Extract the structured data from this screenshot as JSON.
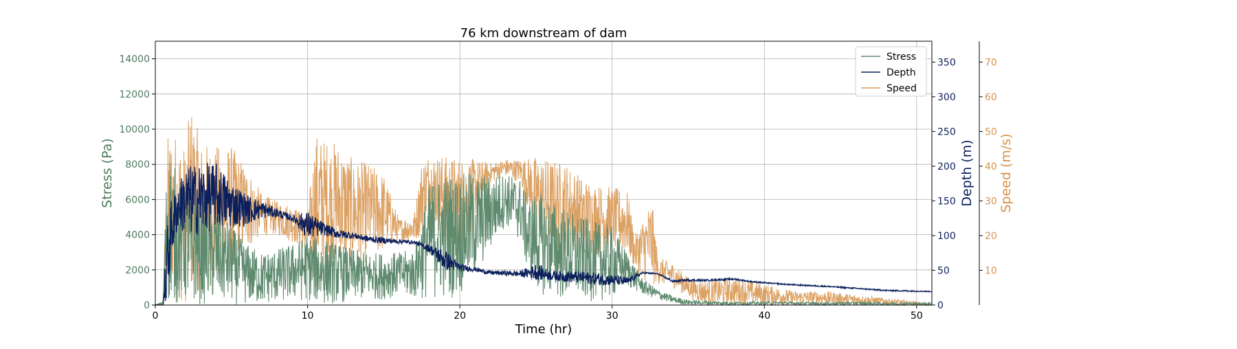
{
  "chart_data": {
    "type": "line",
    "title": "76 km downstream of dam",
    "xlabel": "Time (hr)",
    "xlim": [
      0,
      51
    ],
    "xticks": [
      0,
      10,
      20,
      30,
      40,
      50
    ],
    "grid": true,
    "legend_position": "top-right",
    "axes": {
      "stress": {
        "label": "Stress (Pa)",
        "ylim": [
          0,
          15000
        ],
        "ticks": [
          0,
          2000,
          4000,
          6000,
          8000,
          10000,
          12000,
          14000
        ],
        "side": "left",
        "color": "#4e7a5e"
      },
      "depth": {
        "label": "Depth (m)",
        "ylim": [
          0,
          380
        ],
        "ticks": [
          0,
          50,
          100,
          150,
          200,
          250,
          300,
          350
        ],
        "side": "right",
        "color": "#0b1f5c"
      },
      "speed": {
        "label": "Speed (m/s)",
        "ylim": [
          0,
          76
        ],
        "ticks": [
          10,
          20,
          30,
          40,
          50,
          60,
          70
        ],
        "side": "right-outer",
        "color": "#d8914a"
      }
    },
    "series": [
      {
        "name": "Stress",
        "axis": "stress",
        "color": "#5e8a6e",
        "x": [
          0,
          0.5,
          0.8,
          1.2,
          2,
          3,
          4,
          5,
          6,
          7,
          8,
          9,
          10,
          11,
          12,
          13,
          14,
          15,
          16,
          17,
          18,
          19,
          20,
          21,
          22,
          23,
          24,
          24.5,
          25,
          26,
          27,
          28,
          29,
          30,
          31,
          32,
          33,
          34,
          35,
          36,
          38,
          40,
          42,
          44,
          46,
          48,
          50,
          51
        ],
        "min": [
          0,
          0,
          0,
          0,
          0,
          0,
          0,
          0,
          0,
          0,
          100,
          200,
          200,
          0,
          100,
          200,
          300,
          300,
          500,
          300,
          300,
          300,
          500,
          1500,
          3000,
          4500,
          3500,
          1500,
          800,
          300,
          200,
          200,
          200,
          300,
          1000,
          600,
          300,
          100,
          0,
          0,
          0,
          0,
          0,
          0,
          0,
          0,
          0,
          0
        ],
        "max": [
          0,
          200,
          9500,
          8000,
          6500,
          6000,
          5500,
          4500,
          3500,
          3000,
          3200,
          3500,
          4000,
          3800,
          3500,
          3200,
          3000,
          3000,
          3000,
          3200,
          7000,
          7500,
          7500,
          7500,
          7400,
          7500,
          7200,
          6000,
          6500,
          6000,
          5500,
          5000,
          4700,
          4500,
          3000,
          1500,
          900,
          500,
          300,
          250,
          200,
          200,
          200,
          150,
          200,
          150,
          150,
          150
        ]
      },
      {
        "name": "Depth",
        "axis": "depth",
        "color": "#0b1f5c",
        "x": [
          0,
          0.5,
          0.8,
          1,
          1.5,
          2,
          3,
          4,
          5,
          6,
          7,
          8,
          9,
          10,
          11,
          12,
          13,
          14,
          15,
          16,
          17,
          18,
          19,
          20,
          21,
          22,
          23,
          24,
          25,
          26,
          27,
          28,
          29,
          30,
          31,
          32,
          33,
          34,
          35,
          36,
          37,
          38,
          39,
          40,
          42,
          44,
          46,
          48,
          50,
          51
        ],
        "min": [
          0,
          0,
          0,
          60,
          110,
          100,
          100,
          110,
          110,
          115,
          125,
          125,
          120,
          95,
          100,
          95,
          95,
          90,
          88,
          88,
          88,
          75,
          50,
          48,
          48,
          43,
          42,
          40,
          36,
          35,
          32,
          30,
          28,
          27,
          28,
          45,
          44,
          32,
          34,
          34,
          35,
          36,
          33,
          31,
          28,
          26,
          23,
          20,
          19,
          19
        ],
        "max": [
          0,
          0,
          120,
          150,
          175,
          200,
          205,
          205,
          180,
          160,
          150,
          140,
          130,
          135,
          120,
          110,
          105,
          100,
          98,
          95,
          93,
          88,
          80,
          60,
          55,
          50,
          50,
          50,
          60,
          50,
          50,
          50,
          48,
          45,
          40,
          48,
          46,
          36,
          38,
          37,
          38,
          39,
          35,
          33,
          30,
          28,
          25,
          22,
          21,
          20
        ]
      },
      {
        "name": "Speed",
        "axis": "speed",
        "color": "#d99a58",
        "x": [
          0,
          0.5,
          0.8,
          1,
          1.5,
          2,
          2.3,
          3,
          4,
          5,
          6,
          7,
          8,
          9,
          10,
          10.5,
          11,
          12,
          13,
          14,
          15,
          16,
          17,
          17.5,
          18,
          19,
          20,
          21,
          22,
          23,
          24,
          25,
          26,
          27,
          28,
          29,
          30,
          31,
          31.5,
          32,
          32.6,
          33,
          34,
          35,
          36,
          38,
          40,
          42,
          44,
          46,
          48,
          50,
          51
        ],
        "min": [
          0,
          0,
          0,
          5,
          0,
          0,
          0,
          5,
          5,
          10,
          15,
          20,
          20,
          18,
          15,
          5,
          10,
          10,
          10,
          12,
          15,
          18,
          18,
          20,
          25,
          18,
          12,
          25,
          35,
          37,
          35,
          18,
          15,
          15,
          14,
          14,
          15,
          14,
          10,
          7,
          5,
          6,
          5,
          2,
          0,
          0,
          0,
          0,
          0,
          0,
          0,
          0,
          0
        ],
        "max": [
          0,
          0,
          49,
          50,
          50,
          45,
          59,
          47,
          46,
          46,
          40,
          32,
          30,
          29,
          25,
          50,
          48,
          47,
          42,
          41,
          38,
          25,
          26,
          42,
          44,
          43,
          43,
          42,
          41,
          42,
          42,
          43,
          42,
          41,
          37,
          35,
          34,
          33,
          20,
          25,
          31,
          14,
          12,
          8,
          7,
          8,
          6,
          4,
          4,
          3,
          2,
          1,
          0
        ]
      }
    ]
  }
}
